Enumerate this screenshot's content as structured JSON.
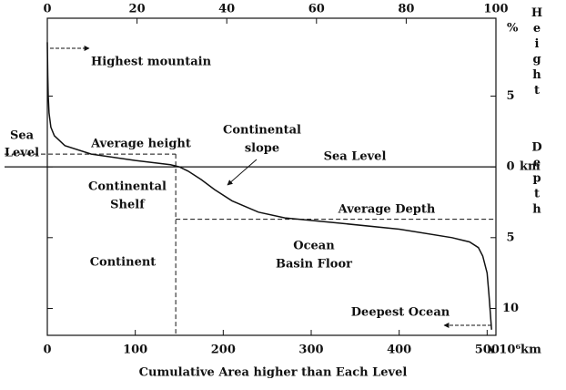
{
  "chart_data": {
    "type": "line",
    "x_label": "Cumulative Area higher than Each Level",
    "xlim": [
      0,
      510
    ],
    "xticks": [
      0,
      100,
      200,
      300,
      400,
      500
    ],
    "x_unit": "x 10⁶km",
    "x2lim": [
      0,
      100
    ],
    "x2ticks": [
      0,
      20,
      40,
      60,
      80,
      100
    ],
    "x2_unit": "%",
    "ylim": [
      -11.9,
      10.5
    ],
    "yticks": [
      5,
      0,
      {
        "value": -5,
        "label": "5"
      },
      {
        "value": -10,
        "label": "10"
      }
    ],
    "y_unit": "km",
    "y_label_top": "Height",
    "y_label_bottom": "Depth",
    "sea_level": 0,
    "average_height": {
      "y": 0.9,
      "x": 146
    },
    "average_depth": {
      "y": -3.7,
      "x": 146
    },
    "series": [
      {
        "color": "#111",
        "x": [
          0,
          0.5,
          1,
          2,
          4,
          8,
          20,
          50,
          100,
          140,
          150,
          160,
          175,
          190,
          210,
          240,
          270,
          320,
          400,
          460,
          480,
          490,
          495,
          500,
          502,
          505
        ],
        "values": [
          8.8,
          6.5,
          5,
          3.8,
          2.8,
          2.2,
          1.5,
          0.9,
          0.45,
          0.15,
          0,
          -0.3,
          -0.9,
          -1.6,
          -2.4,
          -3.2,
          -3.6,
          -3.9,
          -4.4,
          -5.0,
          -5.3,
          -5.7,
          -6.3,
          -7.5,
          -9,
          -11.5
        ]
      }
    ],
    "annotations": {
      "highest_mountain": "Highest mountain",
      "sea_level_left": [
        "Sea",
        "Level"
      ],
      "average_height": "Average height",
      "continental_slope": [
        "Continental",
        "slope"
      ],
      "sea_level": "Sea Level",
      "continental_shelf": [
        "Continental",
        "Shelf"
      ],
      "average_depth": "Average Depth",
      "ocean_basin_floor": [
        "Ocean",
        "Basin Floor"
      ],
      "continent": "Continent",
      "deepest_ocean": "Deepest Ocean"
    }
  }
}
